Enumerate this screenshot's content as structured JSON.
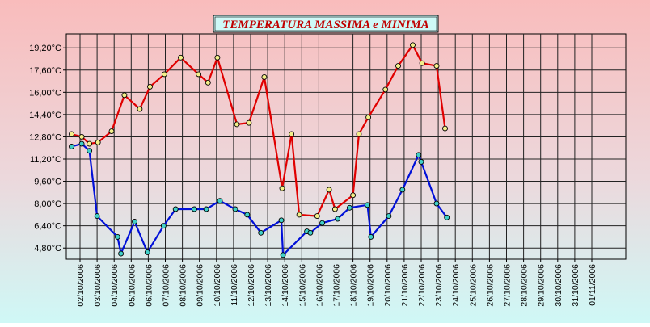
{
  "chart_data": {
    "type": "line",
    "title": "TEMPERATURA MASSIMA e MINIMA",
    "xlabel": "",
    "ylabel": "",
    "unit": "°C",
    "grid": true,
    "legend": "none",
    "ylim": [
      4.0,
      20.2
    ],
    "yticks": [
      "4,80°C",
      "6,40°C",
      "8,00°C",
      "9,60°C",
      "11,20°C",
      "12,80°C",
      "14,40°C",
      "16,00°C",
      "17,60°C",
      "19,20°C"
    ],
    "ytick_values": [
      4.8,
      6.4,
      8.0,
      9.6,
      11.2,
      12.8,
      14.4,
      16.0,
      17.6,
      19.2
    ],
    "xlim": [
      0,
      31
    ],
    "xticks": [
      "02/10/2006",
      "03/10/2006",
      "04/10/2006",
      "05/10/2006",
      "06/10/2006",
      "07/10/2006",
      "08/10/2006",
      "09/10/2006",
      "10/10/2006",
      "11/10/2006",
      "12/10/2006",
      "13/10/2006",
      "14/10/2006",
      "15/10/2006",
      "16/10/2006",
      "17/10/2006",
      "18/10/2006",
      "19/10/2006",
      "20/10/2006",
      "21/10/2006",
      "22/10/2006",
      "23/10/2006",
      "24/10/2006",
      "25/10/2006",
      "26/10/2006",
      "27/10/2006",
      "28/10/2006",
      "29/10/2006",
      "30/10/2006",
      "31/10/2006",
      "01/11/2006"
    ],
    "series": [
      {
        "color": "#e00000",
        "marker_color": "#f4f08a",
        "points": [
          [
            -0.5,
            13.0
          ],
          [
            0.1,
            12.8
          ],
          [
            0.55,
            12.3
          ],
          [
            1.05,
            12.4
          ],
          [
            1.85,
            13.2
          ],
          [
            2.6,
            15.8
          ],
          [
            3.5,
            14.8
          ],
          [
            4.1,
            16.4
          ],
          [
            4.95,
            17.3
          ],
          [
            5.9,
            18.5
          ],
          [
            6.95,
            17.3
          ],
          [
            7.5,
            16.7
          ],
          [
            8.05,
            18.5
          ],
          [
            9.2,
            13.7
          ],
          [
            9.9,
            13.8
          ],
          [
            10.8,
            17.1
          ],
          [
            11.85,
            9.1
          ],
          [
            12.4,
            13.0
          ],
          [
            12.85,
            7.2
          ],
          [
            13.9,
            7.1
          ],
          [
            14.6,
            9.0
          ],
          [
            14.95,
            7.6
          ],
          [
            16.0,
            8.6
          ],
          [
            16.35,
            13.0
          ],
          [
            16.9,
            14.2
          ],
          [
            17.9,
            16.2
          ],
          [
            18.65,
            17.9
          ],
          [
            19.5,
            19.4
          ],
          [
            20.05,
            18.1
          ],
          [
            20.9,
            17.9
          ],
          [
            21.4,
            13.4
          ]
        ]
      },
      {
        "color": "#0010d8",
        "marker_color": "#40d0c8",
        "points": [
          [
            -0.5,
            12.1
          ],
          [
            0.1,
            12.3
          ],
          [
            0.55,
            11.8
          ],
          [
            1.0,
            7.1
          ],
          [
            2.2,
            5.6
          ],
          [
            2.4,
            4.4
          ],
          [
            3.2,
            6.7
          ],
          [
            3.95,
            4.5
          ],
          [
            4.9,
            6.4
          ],
          [
            5.6,
            7.6
          ],
          [
            6.7,
            7.6
          ],
          [
            7.4,
            7.6
          ],
          [
            8.2,
            8.2
          ],
          [
            9.1,
            7.6
          ],
          [
            9.8,
            7.2
          ],
          [
            10.6,
            5.9
          ],
          [
            11.8,
            6.8
          ],
          [
            11.9,
            4.3
          ],
          [
            13.3,
            6.0
          ],
          [
            13.5,
            5.9
          ],
          [
            14.2,
            6.6
          ],
          [
            15.1,
            6.9
          ],
          [
            15.8,
            7.7
          ],
          [
            16.85,
            7.9
          ],
          [
            17.05,
            5.6
          ],
          [
            18.1,
            7.1
          ],
          [
            18.9,
            9.0
          ],
          [
            19.85,
            11.5
          ],
          [
            20.0,
            11.0
          ],
          [
            20.9,
            8.0
          ],
          [
            21.5,
            7.0
          ]
        ]
      }
    ]
  }
}
